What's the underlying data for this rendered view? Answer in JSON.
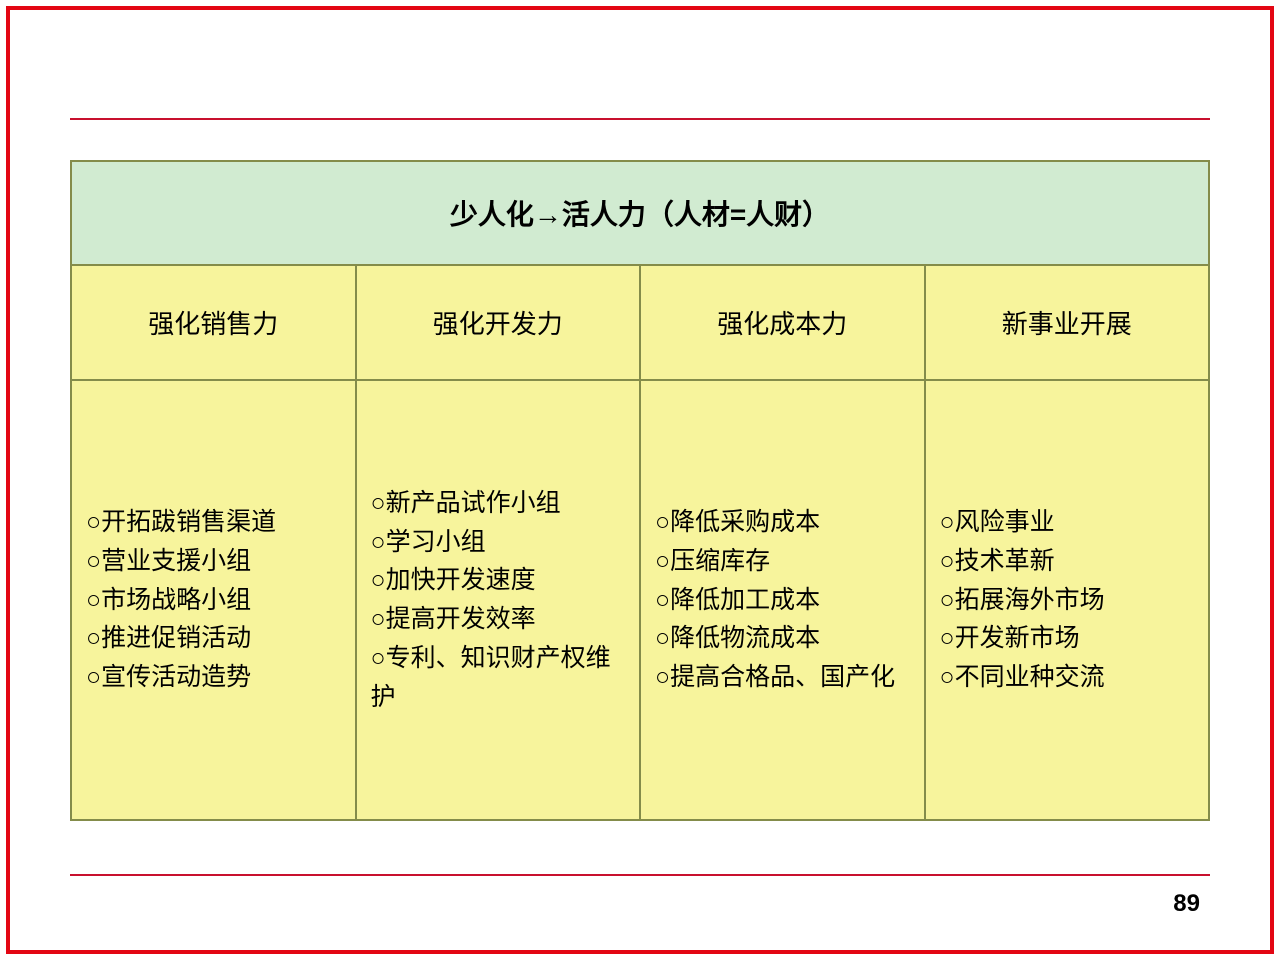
{
  "page": {
    "number": "89",
    "outer_border_color": "#e30613",
    "divider_color": "#c8102e"
  },
  "table": {
    "header_bg": "#d1ebd1",
    "cell_bg": "#f7f49c",
    "border_color": "#848c4a",
    "title": "少人化→活人力（人材=人财）",
    "title_fontsize": 28,
    "subheader_fontsize": 26,
    "body_fontsize": 25,
    "bullet": "○",
    "columns": [
      {
        "header": "强化销售力",
        "items": [
          "开拓跋销售渠道",
          "营业支援小组",
          "市场战略小组",
          "推进促销活动",
          "宣传活动造势"
        ]
      },
      {
        "header": "强化开发力",
        "items": [
          "新产品试作小组",
          "学习小组",
          "加快开发速度",
          "提高开发效率",
          "专利、知识财产权维护"
        ]
      },
      {
        "header": "强化成本力",
        "items": [
          "降低采购成本",
          "压缩库存",
          "降低加工成本",
          "降低物流成本",
          "提高合格品、国产化"
        ]
      },
      {
        "header": "新事业开展",
        "items": [
          "风险事业",
          "技术革新",
          "拓展海外市场",
          "开发新市场",
          "不同业种交流"
        ]
      }
    ]
  }
}
